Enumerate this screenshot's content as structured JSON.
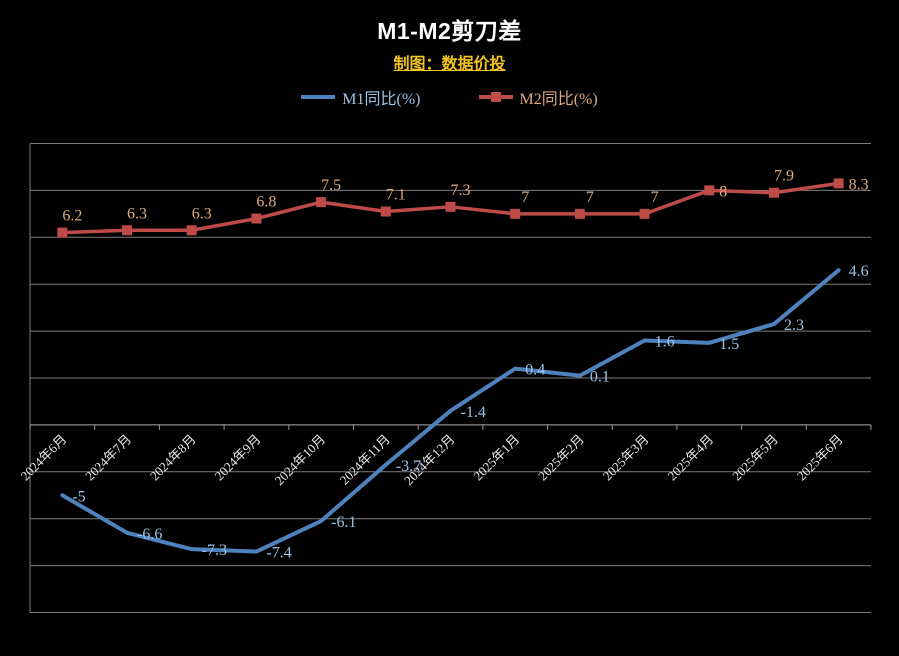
{
  "chart_data": {
    "type": "line",
    "title": "M1-M2剪刀差",
    "title_color": "#ffffff",
    "subtitle": "制图：数据价投",
    "subtitle_color": "#f2c41d",
    "background": "#000000",
    "legend_position": "top-center",
    "grid": "horizontal",
    "ylim": [
      -10,
      10
    ],
    "grid_step": 2,
    "axis_cross": -2,
    "colors": {
      "gridline": "#7d7d7d",
      "axis_line": "#9a9a9a",
      "tick_label": "#e8e8e8"
    },
    "categories": [
      "2024年6月",
      "2024年7月",
      "2024年8月",
      "2024年9月",
      "2024年10月",
      "2024年11月",
      "2024年12月",
      "2025年1月",
      "2025年2月",
      "2025年3月",
      "2025年4月",
      "2025年5月",
      "2025年6月"
    ],
    "series": [
      {
        "key": "m1",
        "name": "M1同比(%)",
        "color": "#4f81bd",
        "label_color": "#9dc3e6",
        "marker": "none",
        "line_width": 4,
        "label_position": "right",
        "values": [
          -5,
          -6.6,
          -7.3,
          -7.4,
          -6.1,
          -3.7,
          -1.4,
          0.4,
          0.1,
          1.6,
          1.5,
          2.3,
          4.6
        ]
      },
      {
        "key": "m2",
        "name": "M2同比(%)",
        "color": "#be4b48",
        "label_color": "#dca97e",
        "marker": "square",
        "line_width": 3.5,
        "label_position": "above",
        "label_position_overrides": {
          "10": "right",
          "12": "right"
        },
        "values": [
          6.2,
          6.3,
          6.3,
          6.8,
          7.5,
          7.1,
          7.3,
          7,
          7,
          7,
          8,
          7.9,
          8.3
        ]
      }
    ]
  }
}
